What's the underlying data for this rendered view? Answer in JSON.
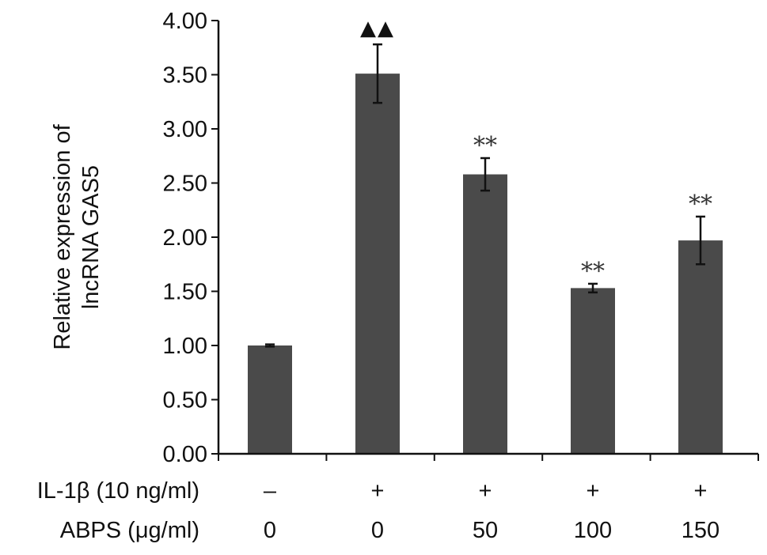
{
  "chart_data": {
    "type": "bar",
    "title": "",
    "xlabel": "",
    "ylabel_lines": [
      "Relative expression of",
      "lncRNA GAS5"
    ],
    "ylim": [
      0,
      4
    ],
    "yticks": [
      "0.00",
      "0.50",
      "1.00",
      "1.50",
      "2.00",
      "2.50",
      "3.00",
      "3.50",
      "4.00"
    ],
    "ytick_values": [
      0,
      0.5,
      1,
      1.5,
      2,
      2.5,
      3,
      3.5,
      4
    ],
    "grid": false,
    "legend": "none",
    "bar_color": "#4a4a4a",
    "values": [
      1.0,
      3.51,
      2.58,
      1.53,
      1.97
    ],
    "errors": [
      0.01,
      0.27,
      0.15,
      0.04,
      0.22
    ],
    "significance": [
      "",
      "▲▲",
      "**",
      "**",
      "**"
    ],
    "conditions": [
      {
        "label": "IL-1β (10 ng/ml)",
        "cells": [
          "–",
          "+",
          "+",
          "+",
          "+"
        ]
      },
      {
        "label": "ABPS (μg/ml)",
        "cells": [
          "0",
          "0",
          "50",
          "100",
          "150"
        ]
      }
    ]
  }
}
